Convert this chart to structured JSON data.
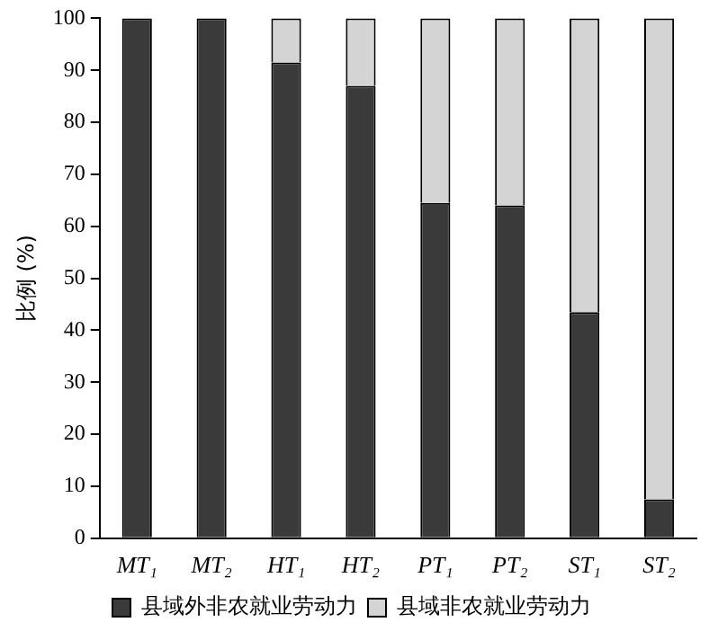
{
  "chart_data": {
    "type": "bar",
    "stacked": true,
    "ylabel": "比例 (%)",
    "categories": [
      "MT₁",
      "MT₂",
      "HT₁",
      "HT₂",
      "PT₁",
      "PT₂",
      "ST₁",
      "ST₂"
    ],
    "series": [
      {
        "name": "县域外非农就业劳动力",
        "color": "#3a3a3a",
        "values": [
          100,
          100,
          91.5,
          87,
          64.5,
          64,
          43.5,
          7.5
        ]
      },
      {
        "name": "县域非农就业劳动力",
        "color": "#d4d4d4",
        "values": [
          0,
          0,
          8.5,
          13,
          35.5,
          36,
          56.5,
          92.5
        ]
      }
    ],
    "ylim": [
      0,
      100
    ],
    "yticks": [
      0,
      10,
      20,
      30,
      40,
      50,
      60,
      70,
      80,
      90,
      100
    ],
    "legend": "bottom"
  }
}
